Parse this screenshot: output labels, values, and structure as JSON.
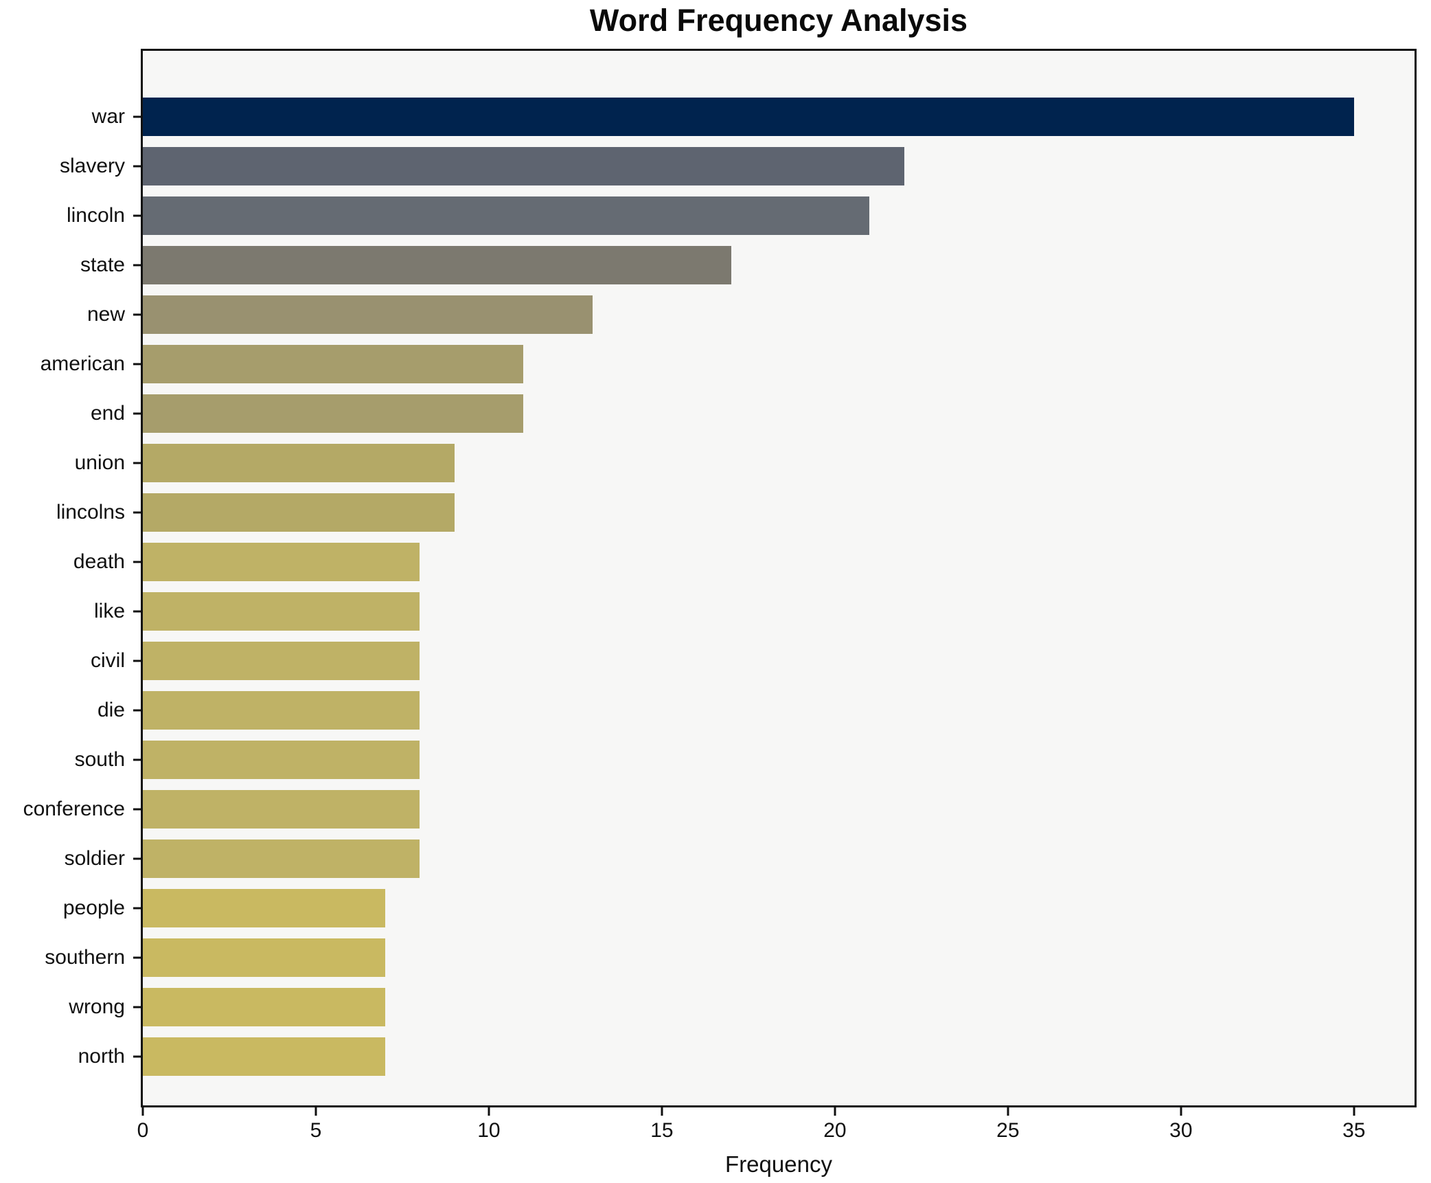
{
  "chart_data": {
    "type": "bar",
    "orientation": "horizontal",
    "title": "Word Frequency Analysis",
    "xlabel": "Frequency",
    "ylabel": "",
    "categories": [
      "war",
      "slavery",
      "lincoln",
      "state",
      "new",
      "american",
      "end",
      "union",
      "lincolns",
      "death",
      "like",
      "civil",
      "die",
      "south",
      "conference",
      "soldier",
      "people",
      "southern",
      "wrong",
      "north"
    ],
    "values": [
      35,
      22,
      21,
      17,
      13,
      11,
      11,
      9,
      9,
      8,
      8,
      8,
      8,
      8,
      8,
      8,
      7,
      7,
      7,
      7
    ],
    "bar_colors": [
      "#00234E",
      "#5E6470",
      "#656B73",
      "#7C796F",
      "#999170",
      "#A69D6C",
      "#A69D6C",
      "#B4A966",
      "#B4A966",
      "#BFB266",
      "#BFB266",
      "#BFB266",
      "#BFB266",
      "#BFB266",
      "#BFB266",
      "#BFB266",
      "#C9B961",
      "#C9B961",
      "#C9B961",
      "#C9B961"
    ],
    "xticks": [
      0,
      5,
      10,
      15,
      20,
      25,
      30,
      35
    ],
    "xlim": [
      0,
      36.75
    ],
    "grid": false,
    "legend": null,
    "plot_background": "#f7f7f6",
    "figure_background": "#ffffff",
    "spine_color": "#111111",
    "text_color": "#111111"
  }
}
